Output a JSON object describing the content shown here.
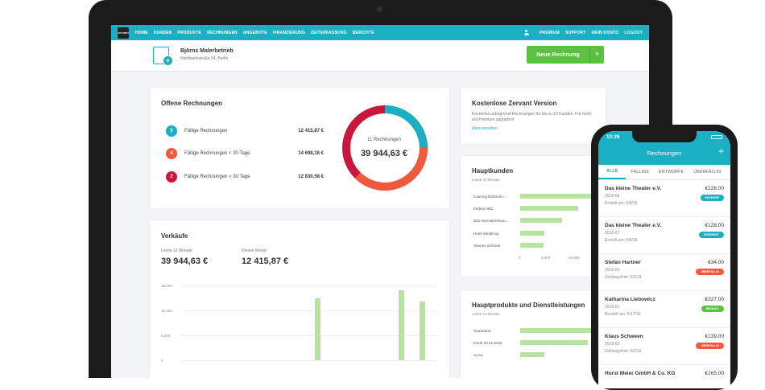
{
  "nav": {
    "logo": "zervant",
    "left": [
      "HOME",
      "KUNDEN",
      "PRODUKTE",
      "RECHNUNGEN",
      "ANGEBOTE",
      "FINANZIERUNG",
      "ZEITERFASSUNG",
      "BERICHTE"
    ],
    "right": [
      "PREMIUM",
      "SUPPORT",
      "MEIN KONTO",
      "LOGOUT"
    ]
  },
  "company": {
    "name": "Björns Malerbetrieb",
    "address": "Handwerkstraße 54, Berlin"
  },
  "new_invoice_label": "Neue Rechnung",
  "open_invoices": {
    "title": "Offene Rechnungen",
    "rows": [
      {
        "count": "5",
        "label": "Fällige Rechnungen",
        "amount": "12 415,87 €",
        "color": "#1aafc3"
      },
      {
        "count": "4",
        "label": "Fällige Rechnungen < 30 Tage",
        "amount": "14 698,18 €",
        "color": "#ef5a3c"
      },
      {
        "count": "2",
        "label": "Fällige Rechnungen > 30 Tage",
        "amount": "12 830,58 €",
        "color": "#c8173a"
      }
    ],
    "donut_label": "11 Rechnungen",
    "donut_total": "39 944,63 €"
  },
  "sales": {
    "title": "Verkäufe",
    "last12_label": "Letzte 12 Monate",
    "last12_value": "39 944,63 €",
    "month_label": "Diesen Monat",
    "month_value": "12 415,87 €",
    "yticks": [
      "15,000",
      "10,000",
      "5,000",
      "0"
    ],
    "bar_values": [
      12500,
      14000,
      11800
    ],
    "bar_color": "#b6e39e"
  },
  "free": {
    "title": "Kostenlose Zervant Version",
    "text": "Kostenlos unbegrenzt Rechnungen für bis zu 10 Kunden. Für mehr auf Premium upgraden!",
    "link": "Abos ansehen"
  },
  "customers": {
    "title": "Hauptkunden",
    "subtitle": "Letzte 12 Monate",
    "names": [
      "Catering Bötzschn...",
      "Farben ABC",
      "Otto Normalverbrau...",
      "Hotel Sandkrug",
      "Hannes Schmidt"
    ],
    "values": [
      14800,
      12000,
      8600,
      5000,
      4800
    ],
    "xticks": [
      "0",
      "5,000",
      "10,000"
    ]
  },
  "products": {
    "title": "Hauptprodukte und Dienstleistungen",
    "subtitle": "Letzte 12 Monate",
    "names": [
      "Hauswand",
      "Event 30.11.2019",
      "AAAA"
    ],
    "values": [
      15000,
      14000,
      5000
    ]
  },
  "phone": {
    "time": "10:26",
    "title": "Rechnungen",
    "tabs": [
      "ALLE",
      "FÄLLIGE",
      "ENTWÜRFE",
      "ÜBERFÄLLIG"
    ],
    "items": [
      {
        "name": "Das kleine Theater e.V.",
        "number": "2018-68",
        "date": "Erstellt am: 5/8/19",
        "amount": "€128.00",
        "badge": "ENTWURF",
        "color": "#1aafc3"
      },
      {
        "name": "Das kleine Theater e.V.",
        "number": "2018-67",
        "date": "Erstellt am: 5/8/19",
        "amount": "€128.00",
        "badge": "GESENDET",
        "color": "#1aafc3"
      },
      {
        "name": "Stefan Hartner",
        "number": "2018-63",
        "date": "Zahlungsfrist: 5/2/19",
        "amount": "€34.00",
        "badge": "ÜBERFÄLLIG",
        "color": "#ef5a3c"
      },
      {
        "name": "Katharina Liebowicz",
        "number": "2018-61",
        "date": "Bezahlt am: 5/17/19",
        "amount": "€327.00",
        "badge": "BEZAHLT",
        "color": "#5cc143"
      },
      {
        "name": "Klaus Schween",
        "number": "2018-63",
        "date": "Zahlungsfrist: 5/2/19",
        "amount": "€139.00",
        "badge": "ÜBERFÄLLIG",
        "color": "#ef5a3c"
      },
      {
        "name": "Horst Meier GmbH & Co. KG",
        "number": "",
        "date": "",
        "amount": "€165.00",
        "badge": "",
        "color": ""
      }
    ]
  }
}
